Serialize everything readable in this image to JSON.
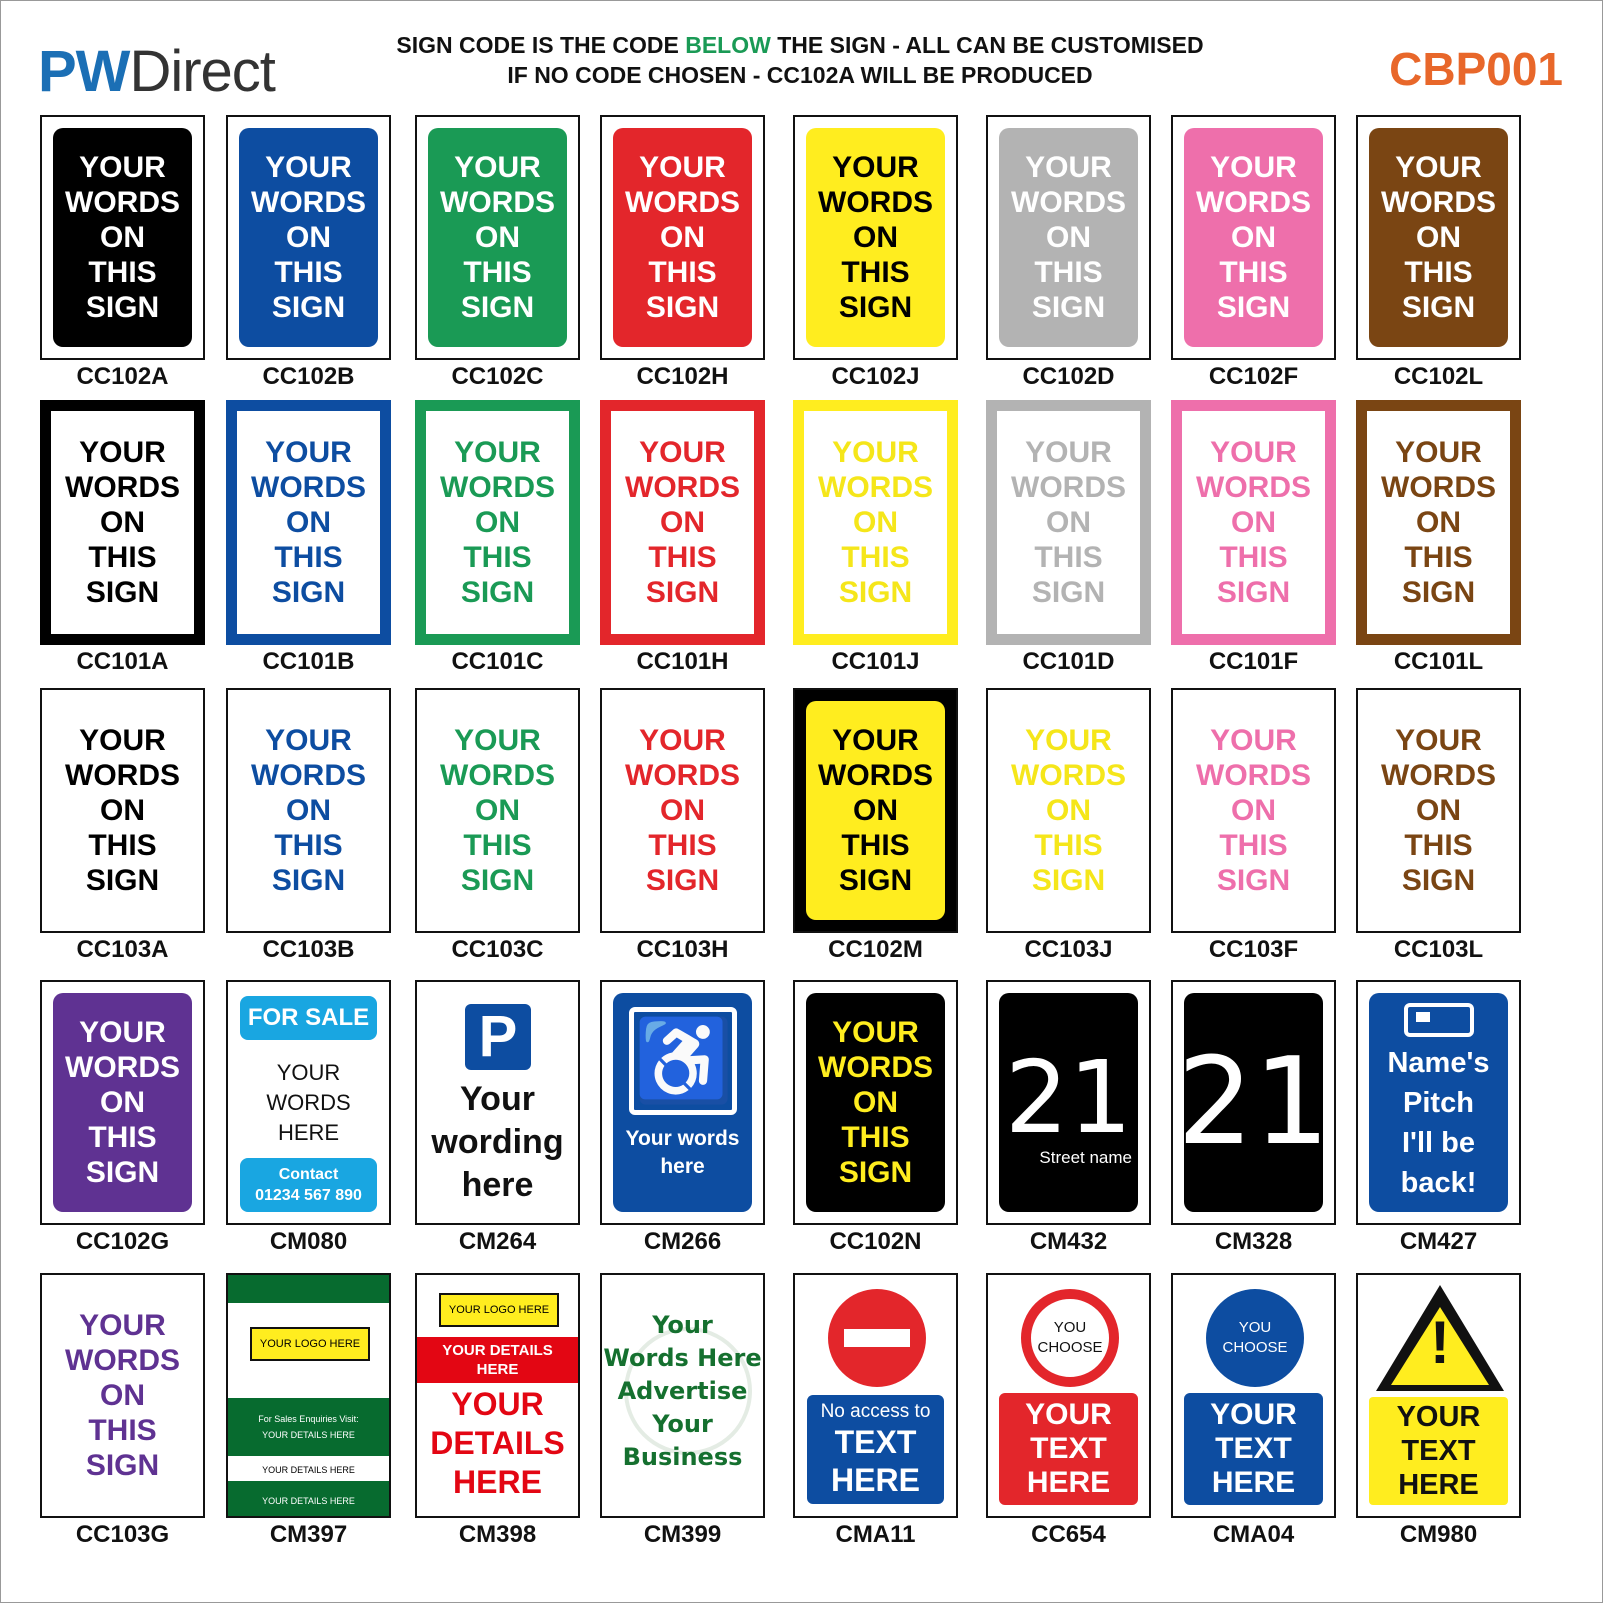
{
  "header": {
    "logo_pw": "PW",
    "logo_direct": "Direct",
    "line1_a": "SIGN CODE IS THE CODE ",
    "line1_b": "BELOW",
    "line1_c": " THE SIGN - ALL CAN BE CUSTOMISED",
    "line2": "IF NO CODE CHOSEN - CC102A WILL BE PRODUCED",
    "catalog_code": "CBP001"
  },
  "sign_text": [
    "YOUR",
    "WORDS",
    "ON",
    "THIS",
    "SIGN"
  ],
  "colors": {
    "black": "#000000",
    "blue": "#0d4da1",
    "green": "#1a9a55",
    "red": "#e3262b",
    "yellow": "#ffed1f",
    "grey": "#b3b3b3",
    "pink": "#ee6fab",
    "brown": "#7a4513",
    "purple": "#5f3292",
    "orange": "#e8672a"
  },
  "rows": [
    {
      "items": [
        {
          "code": "CC102A",
          "style": "solid",
          "color": "#000000",
          "text": "#ffffff"
        },
        {
          "code": "CC102B",
          "style": "solid",
          "color": "#0d4da1",
          "text": "#ffffff"
        },
        {
          "code": "CC102C",
          "style": "solid",
          "color": "#1a9a55",
          "text": "#ffffff"
        },
        {
          "code": "CC102H",
          "style": "solid",
          "color": "#e3262b",
          "text": "#ffffff"
        },
        {
          "code": "CC102J",
          "style": "solid",
          "color": "#ffed1f",
          "text": "#000000"
        },
        {
          "code": "CC102D",
          "style": "solid",
          "color": "#b3b3b3",
          "text": "#ffffff"
        },
        {
          "code": "CC102F",
          "style": "solid",
          "color": "#ee6fab",
          "text": "#ffffff"
        },
        {
          "code": "CC102L",
          "style": "solid",
          "color": "#7a4513",
          "text": "#ffffff"
        }
      ]
    },
    {
      "items": [
        {
          "code": "CC101A",
          "style": "border",
          "color": "#000000",
          "text": "#000000"
        },
        {
          "code": "CC101B",
          "style": "border",
          "color": "#0d4da1",
          "text": "#0d4da1"
        },
        {
          "code": "CC101C",
          "style": "border",
          "color": "#1a9a55",
          "text": "#1a9a55"
        },
        {
          "code": "CC101H",
          "style": "border",
          "color": "#e3262b",
          "text": "#e3262b"
        },
        {
          "code": "CC101J",
          "style": "border",
          "color": "#ffed1f",
          "text": "#f5e61a"
        },
        {
          "code": "CC101D",
          "style": "border",
          "color": "#b3b3b3",
          "text": "#b3b3b3"
        },
        {
          "code": "CC101F",
          "style": "border",
          "color": "#ee6fab",
          "text": "#ee6fab"
        },
        {
          "code": "CC101L",
          "style": "border",
          "color": "#7a4513",
          "text": "#7a4513"
        }
      ]
    },
    {
      "items": [
        {
          "code": "CC103A",
          "style": "plain",
          "color": "#ffffff",
          "text": "#000000"
        },
        {
          "code": "CC103B",
          "style": "plain",
          "color": "#ffffff",
          "text": "#0d4da1"
        },
        {
          "code": "CC103C",
          "style": "plain",
          "color": "#ffffff",
          "text": "#1a9a55"
        },
        {
          "code": "CC103H",
          "style": "plain",
          "color": "#ffffff",
          "text": "#e3262b"
        },
        {
          "code": "CC102M",
          "style": "framed",
          "color": "#ffed1f",
          "text": "#000000"
        },
        {
          "code": "CC103J",
          "style": "plain",
          "color": "#ffffff",
          "text": "#f5e61a"
        },
        {
          "code": "CC103F",
          "style": "plain",
          "color": "#ffffff",
          "text": "#ee6fab"
        },
        {
          "code": "CC103L",
          "style": "plain",
          "color": "#ffffff",
          "text": "#7a4513"
        }
      ]
    },
    {
      "items": [
        {
          "code": "CC102G",
          "style": "solid",
          "color": "#5f3292",
          "text": "#ffffff"
        },
        {
          "code": "CM080",
          "style": "forsale",
          "banner": "FOR SALE",
          "body": [
            "YOUR",
            "WORDS",
            "HERE"
          ],
          "contact": [
            "Contact",
            "01234 567 890"
          ]
        },
        {
          "code": "CM264",
          "style": "parking",
          "icon": "P",
          "body": [
            "Your",
            "wording",
            "here"
          ]
        },
        {
          "code": "CM266",
          "style": "disabled",
          "icon": "wheelchair-icon",
          "body": [
            "Your words",
            "here"
          ]
        },
        {
          "code": "CC102N",
          "style": "solid",
          "color": "#000000",
          "text": "#ffed1f"
        },
        {
          "code": "CM432",
          "style": "number",
          "number": "21",
          "street": "Street name"
        },
        {
          "code": "CM328",
          "style": "number",
          "number": "21"
        },
        {
          "code": "CM427",
          "style": "caravan",
          "icon": "caravan-icon",
          "body": [
            "Name's",
            "Pitch",
            "I'll be",
            "back!"
          ]
        }
      ]
    },
    {
      "items": [
        {
          "code": "CC103G",
          "style": "plain",
          "color": "#ffffff",
          "text": "#5f3292"
        },
        {
          "code": "CM397",
          "style": "advert-green",
          "logo": "YOUR LOGO HERE",
          "enquiry": "For Sales Enquiries Visit:",
          "details": [
            "YOUR DETAILS HERE",
            "YOUR DETAILS HERE",
            "YOUR DETAILS HERE"
          ]
        },
        {
          "code": "CM398",
          "style": "advert-red",
          "logo": "YOUR LOGO HERE",
          "banner": [
            "YOUR DETAILS",
            "HERE"
          ],
          "body": [
            "YOUR",
            "DETAILS",
            "HERE"
          ]
        },
        {
          "code": "CM399",
          "style": "advert-tree",
          "body": [
            "Your",
            "Words Here",
            "Advertise",
            "Your",
            "Business"
          ]
        },
        {
          "code": "CMA11",
          "style": "noentry",
          "body": [
            "No access to",
            "TEXT",
            "HERE"
          ]
        },
        {
          "code": "CC654",
          "style": "circle-red",
          "circle": [
            "YOU",
            "CHOOSE"
          ],
          "body": [
            "YOUR",
            "TEXT",
            "HERE"
          ]
        },
        {
          "code": "CMA04",
          "style": "circle-blue",
          "circle": [
            "YOU",
            "CHOOSE"
          ],
          "body": [
            "YOUR",
            "TEXT",
            "HERE"
          ]
        },
        {
          "code": "CM980",
          "style": "warning",
          "icon": "exclamation-warning-icon",
          "body": [
            "YOUR",
            "TEXT",
            "HERE"
          ]
        }
      ]
    }
  ]
}
